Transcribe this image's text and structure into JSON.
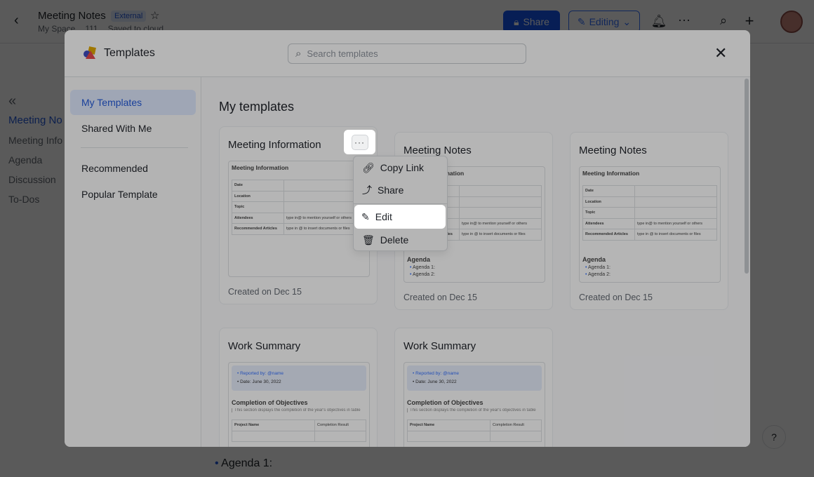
{
  "topbar": {
    "title": "Meeting Notes",
    "badge": "External",
    "location": "My Space",
    "count": "111",
    "status": "Saved to cloud",
    "share_label": "Share",
    "editing_label": "Editing"
  },
  "outline": {
    "items": [
      "Meeting No",
      "Meeting Info",
      "Agenda",
      "Discussion",
      "To-Dos"
    ]
  },
  "modal": {
    "title": "Templates",
    "search_placeholder": "Search templates",
    "sidebar": [
      "My Templates",
      "Shared With Me",
      "Recommended",
      "Popular Template"
    ],
    "section_title": "My templates"
  },
  "preview_mi": {
    "heading": "Meeting Information",
    "rows": [
      [
        "Date",
        ""
      ],
      [
        "Location",
        ""
      ],
      [
        "Topic",
        ""
      ],
      [
        "Attendees",
        "type in@ to mention yourself or others"
      ],
      [
        "Recommended Articles",
        "type in @ to insert documents or files"
      ]
    ],
    "agenda": "Agenda",
    "agenda_items": [
      "Agenda 1:",
      "Agenda 2:"
    ]
  },
  "preview_ws": {
    "reported": "Reported by: @name",
    "date": "Date: June 30, 2022",
    "heading": "Completion of Objectives",
    "quote": "This section displays the completion of the year's objectives in table",
    "cols": [
      "Project Name",
      "Completion Result"
    ]
  },
  "cards": [
    {
      "title": "Meeting Information",
      "created": "Created on Dec 15"
    },
    {
      "title": "Meeting Notes",
      "created": "Created on Dec 15"
    },
    {
      "title": "Meeting Notes",
      "created": "Created on Dec 15"
    },
    {
      "title": "Work Summary"
    },
    {
      "title": "Work Summary"
    }
  ],
  "menu": {
    "items": [
      "Copy Link",
      "Share",
      "Edit",
      "Delete"
    ]
  },
  "bottom": {
    "agenda": "Agenda 1:"
  },
  "colors": {
    "accent": "#3370ff",
    "share_button": "#1456f0"
  }
}
